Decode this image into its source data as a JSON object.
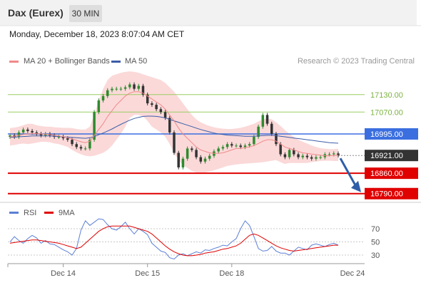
{
  "header": {
    "instrument": "Dax (Eurex)",
    "timeframe": "30 MIN"
  },
  "timestamp": "Monday, December 18, 2023 8:07:04 AM CET",
  "legend": {
    "ma20": {
      "label": "MA 20 + Bollinger Bands",
      "color": "#f08a8a"
    },
    "ma50": {
      "label": "MA 50",
      "color": "#3b5da8"
    }
  },
  "credit": "Research © 2023 Trading Central",
  "rsi_legend": {
    "rsi": {
      "label": "RSI",
      "color": "#5b7fd6"
    },
    "ma9": {
      "label": "9MA",
      "color": "#e00000"
    }
  },
  "chart_data": {
    "type": "candlestick",
    "x_labels": [
      "Dec 14",
      "Dec 15",
      "Dec 18",
      "Dec 24"
    ],
    "price_range": [
      16760,
      17220
    ],
    "levels": [
      {
        "label": "17130.00",
        "value": 17130,
        "color": "#9acd62",
        "kind": "resistance"
      },
      {
        "label": "17070.00",
        "value": 17070,
        "color": "#9acd62",
        "kind": "resistance"
      },
      {
        "label": "16995.00",
        "value": 16995,
        "color": "#3b6fe0",
        "kind": "pivot"
      },
      {
        "label": "16921.00",
        "value": 16921,
        "color": "#333333",
        "kind": "last"
      },
      {
        "label": "16860.00",
        "value": 16860,
        "color": "#e00000",
        "kind": "support"
      },
      {
        "label": "16790.00",
        "value": 16790,
        "color": "#e00000",
        "kind": "support"
      }
    ],
    "close": [
      16990,
      16985,
      17000,
      17010,
      17005,
      17000,
      16995,
      16990,
      16995,
      16990,
      16985,
      16985,
      16980,
      16975,
      16960,
      16950,
      16945,
      16945,
      16975,
      17070,
      17110,
      17125,
      17145,
      17150,
      17150,
      17150,
      17155,
      17165,
      17150,
      17160,
      17130,
      17100,
      17095,
      17080,
      17070,
      17050,
      17000,
      16930,
      16880,
      16910,
      16945,
      16940,
      16915,
      16900,
      16910,
      16920,
      16935,
      16945,
      16950,
      16960,
      16955,
      16955,
      16950,
      16955,
      16960,
      16985,
      17020,
      17060,
      17030,
      16995,
      16960,
      16925,
      16915,
      16940,
      16925,
      16915,
      16920,
      16915,
      16910,
      16915,
      16915,
      16925,
      16925,
      16928,
      16921
    ],
    "ma20": [
      16985,
      16987,
      16990,
      16993,
      16995,
      16996,
      16996,
      16995,
      16994,
      16993,
      16990,
      16988,
      16985,
      16982,
      16978,
      16973,
      16968,
      16965,
      16970,
      16990,
      17010,
      17030,
      17055,
      17075,
      17095,
      17110,
      17125,
      17135,
      17140,
      17140,
      17135,
      17125,
      17115,
      17105,
      17095,
      17080,
      17060,
      17040,
      17015,
      16995,
      16980,
      16965,
      16950,
      16940,
      16935,
      16930,
      16928,
      16928,
      16930,
      16935,
      16940,
      16945,
      16945,
      16948,
      16950,
      16955,
      16962,
      16970,
      16975,
      16975,
      16970,
      16960,
      16950,
      16945,
      16940,
      16935,
      16930,
      16928,
      16926,
      16924,
      16922,
      16920,
      16920,
      16921,
      16922
    ],
    "ma50": [
      16983,
      16984,
      16985,
      16986,
      16987,
      16988,
      16988,
      16988,
      16988,
      16988,
      16987,
      16986,
      16985,
      16984,
      16983,
      16982,
      16981,
      16980,
      16982,
      16986,
      16992,
      16998,
      17005,
      17012,
      17020,
      17028,
      17035,
      17042,
      17048,
      17052,
      17055,
      17056,
      17056,
      17055,
      17053,
      17050,
      17045,
      17040,
      17035,
      17030,
      17025,
      17020,
      17015,
      17010,
      17006,
      17002,
      16998,
      16995,
      16993,
      16991,
      16990,
      16989,
      16988,
      16987,
      16987,
      16987,
      16988,
      16989,
      16990,
      16990,
      16989,
      16987,
      16985,
      16983,
      16981,
      16979,
      16977,
      16975,
      16973,
      16971,
      16969,
      16967,
      16965,
      16964,
      16963
    ],
    "bb_upper": [
      17015,
      17017,
      17020,
      17025,
      17030,
      17030,
      17025,
      17022,
      17020,
      17020,
      17018,
      17017,
      17016,
      17016,
      17015,
      17012,
      17010,
      17010,
      17020,
      17060,
      17110,
      17150,
      17180,
      17195,
      17200,
      17205,
      17208,
      17210,
      17208,
      17205,
      17200,
      17195,
      17190,
      17185,
      17180,
      17170,
      17155,
      17140,
      17120,
      17100,
      17080,
      17060,
      17045,
      17035,
      17028,
      17022,
      17018,
      17015,
      17013,
      17012,
      17012,
      17014,
      17016,
      17020,
      17025,
      17030,
      17038,
      17045,
      17048,
      17045,
      17035,
      17022,
      17008,
      16995,
      16985,
      16975,
      16968,
      16962,
      16955,
      16950,
      16946,
      16944,
      16943,
      16943,
      16944
    ],
    "bb_lower": [
      16955,
      16957,
      16960,
      16962,
      16960,
      16962,
      16965,
      16968,
      16968,
      16966,
      16962,
      16960,
      16955,
      16950,
      16940,
      16932,
      16925,
      16920,
      16918,
      16920,
      16925,
      16930,
      16940,
      16955,
      16975,
      16995,
      17020,
      17050,
      17060,
      17060,
      17055,
      17040,
      17020,
      17010,
      17000,
      16985,
      16960,
      16930,
      16905,
      16888,
      16878,
      16868,
      16862,
      16860,
      16862,
      16866,
      16870,
      16875,
      16880,
      16885,
      16888,
      16890,
      16892,
      16893,
      16894,
      16895,
      16896,
      16898,
      16900,
      16903,
      16905,
      16898,
      16892,
      16895,
      16895,
      16895,
      16895,
      16895,
      16898,
      16900,
      16902,
      16903,
      16903,
      16902,
      16902
    ],
    "rsi": [
      50,
      58,
      52,
      48,
      55,
      60,
      56,
      48,
      52,
      47,
      46,
      42,
      38,
      35,
      30,
      40,
      68,
      82,
      75,
      80,
      85,
      84,
      76,
      70,
      68,
      73,
      80,
      70,
      62,
      70,
      66,
      61,
      48,
      42,
      36,
      34,
      26,
      24,
      30,
      32,
      29,
      32,
      35,
      33,
      38,
      37,
      40,
      42,
      45,
      44,
      50,
      55,
      70,
      82,
      75,
      58,
      40,
      36,
      37,
      43,
      36,
      33,
      33,
      30,
      36,
      42,
      40,
      38,
      45,
      47,
      45,
      43,
      46,
      48,
      45
    ],
    "ma9": [
      48,
      49,
      50,
      51,
      52,
      53,
      53,
      52,
      51,
      50,
      49,
      48,
      46,
      44,
      42,
      40,
      42,
      48,
      54,
      60,
      66,
      70,
      73,
      74,
      74,
      74,
      74,
      74,
      72,
      70,
      68,
      66,
      62,
      56,
      50,
      44,
      39,
      35,
      32,
      30,
      29,
      29,
      30,
      31,
      33,
      34,
      35,
      37,
      39,
      40,
      42,
      44,
      48,
      54,
      60,
      62,
      60,
      56,
      52,
      48,
      44,
      41,
      39,
      37,
      36,
      37,
      38,
      39,
      40,
      41,
      42,
      43,
      44,
      45,
      45
    ],
    "rsi_ticks": [
      "70",
      "50",
      "30"
    ]
  }
}
